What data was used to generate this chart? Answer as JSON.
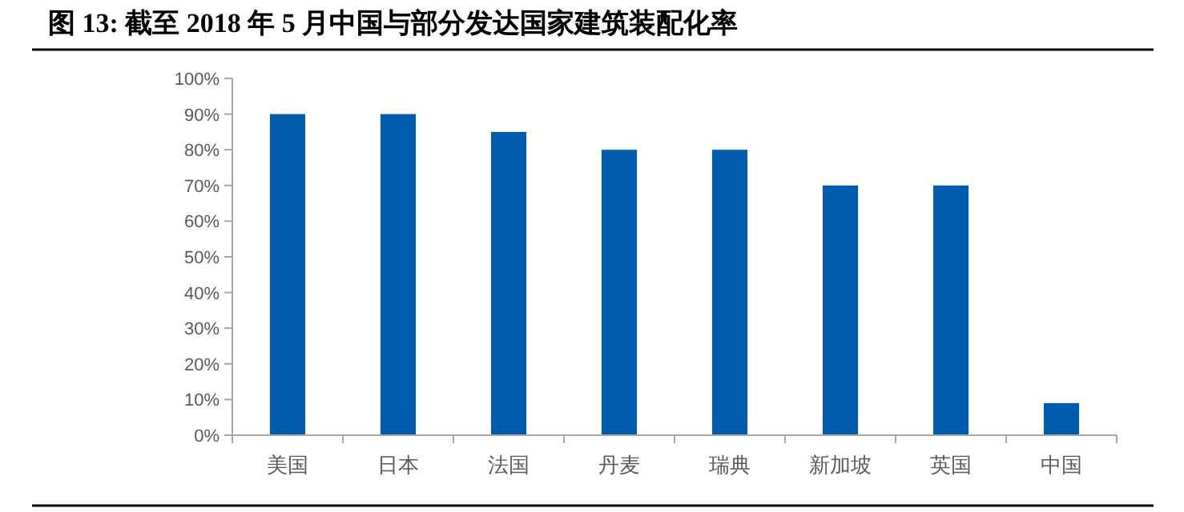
{
  "chart_data": {
    "type": "bar",
    "title": "图 13: 截至 2018 年 5 月中国与部分发达国家建筑装配化率",
    "categories": [
      "美国",
      "日本",
      "法国",
      "丹麦",
      "瑞典",
      "新加坡",
      "英国",
      "中国"
    ],
    "values": [
      90,
      90,
      85,
      80,
      80,
      70,
      70,
      9
    ],
    "color": "#005bac",
    "ylim": [
      0,
      100
    ],
    "yticks": [
      {
        "value": 0,
        "label": "0%"
      },
      {
        "value": 10,
        "label": "10%"
      },
      {
        "value": 20,
        "label": "20%"
      },
      {
        "value": 30,
        "label": "30%"
      },
      {
        "value": 40,
        "label": "40%"
      },
      {
        "value": 50,
        "label": "50%"
      },
      {
        "value": 60,
        "label": "60%"
      },
      {
        "value": 70,
        "label": "70%"
      },
      {
        "value": 80,
        "label": "80%"
      },
      {
        "value": 90,
        "label": "90%"
      },
      {
        "value": 100,
        "label": "100%"
      }
    ],
    "grid": false
  }
}
